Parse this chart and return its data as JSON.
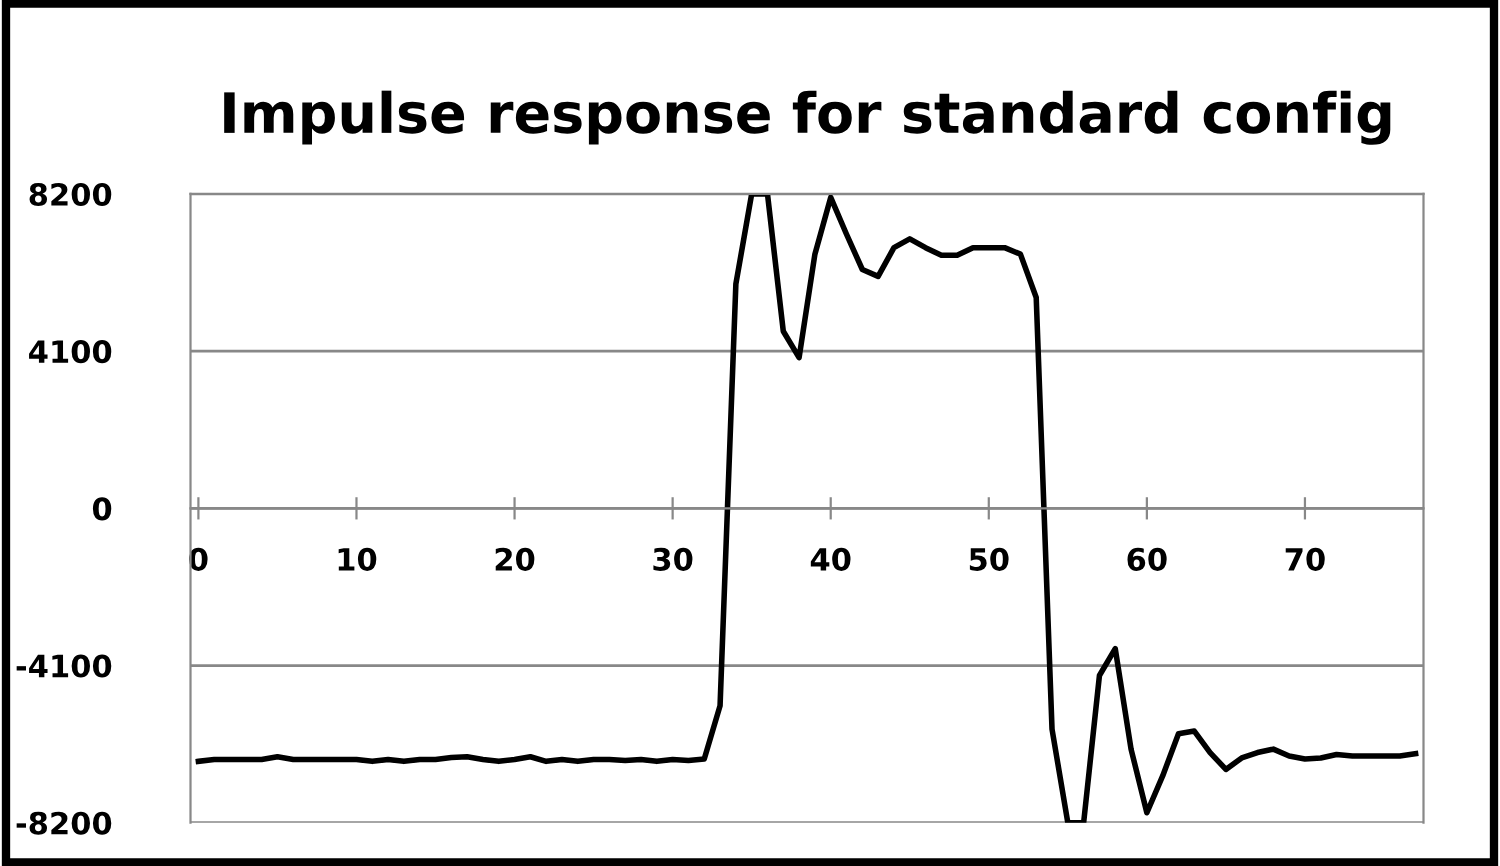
{
  "chart_data": {
    "type": "line",
    "title": "Impulse response for standard config",
    "x": [
      0,
      1,
      2,
      3,
      4,
      5,
      6,
      7,
      8,
      9,
      10,
      11,
      12,
      13,
      14,
      15,
      16,
      17,
      18,
      19,
      20,
      21,
      22,
      23,
      24,
      25,
      26,
      27,
      28,
      29,
      30,
      31,
      32,
      33,
      34,
      35,
      36,
      37,
      38,
      39,
      40,
      41,
      42,
      43,
      44,
      45,
      46,
      47,
      48,
      49,
      50,
      51,
      52,
      53,
      54,
      55,
      56,
      57,
      58,
      59,
      60,
      61,
      62,
      63,
      64,
      65,
      66,
      67,
      68,
      69,
      70,
      71,
      72,
      73,
      74,
      75,
      76,
      77
    ],
    "series": [
      {
        "color": "#000000",
        "values": [
          -6600,
          -6550,
          -6550,
          -6550,
          -6550,
          -6480,
          -6550,
          -6550,
          -6550,
          -6550,
          -6550,
          -6600,
          -6550,
          -6600,
          -6550,
          -6550,
          -6500,
          -6480,
          -6550,
          -6600,
          -6550,
          -6480,
          -6600,
          -6550,
          -6600,
          -6550,
          -6550,
          -6580,
          -6550,
          -6600,
          -6550,
          -6580,
          -6540,
          -5150,
          5850,
          8200,
          8200,
          4620,
          3930,
          6630,
          8110,
          7150,
          6230,
          6050,
          6800,
          7030,
          6800,
          6600,
          6600,
          6800,
          6800,
          6800,
          6630,
          5500,
          -5760,
          -8200,
          -8200,
          -4360,
          -3660,
          -6280,
          -7940,
          -6980,
          -5880,
          -5810,
          -6370,
          -6810,
          -6510,
          -6370,
          -6280,
          -6460,
          -6540,
          -6510,
          -6420,
          -6460,
          -6460,
          -6460,
          -6460,
          -6400
        ]
      }
    ],
    "xlim": [
      -0.5,
      77.5
    ],
    "xticks": [
      0,
      10,
      20,
      30,
      40,
      50,
      60,
      70
    ],
    "ylim": [
      -8200,
      8200
    ],
    "yticks": [
      -8200,
      -4100,
      0,
      4100,
      8200
    ],
    "grid": "y",
    "marker": "none",
    "line_style": "solid"
  }
}
